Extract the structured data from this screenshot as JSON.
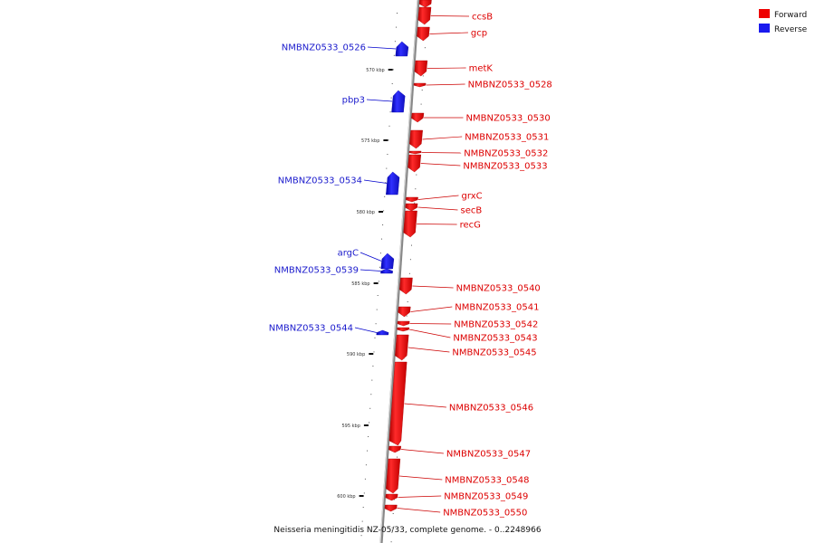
{
  "caption": "Neisseria meningitidis NZ-05/33, complete genome. - 0..2248966",
  "legend": [
    {
      "label": "Forward",
      "color": "#ee0000"
    },
    {
      "label": "Reverse",
      "color": "#1a1aee"
    }
  ],
  "colors": {
    "forward": "#ee0000",
    "reverse": "#1a1aee",
    "backbone": "#888888"
  },
  "ticks": [
    "570 kbp",
    "575 kbp",
    "580 kbp",
    "585 kbp",
    "590 kbp",
    "595 kbp",
    "600 kbp"
  ],
  "genes": {
    "forward": [
      "ccsB",
      "gcp",
      "metK",
      "NMBNZ0533_0528",
      "NMBNZ0533_0530",
      "NMBNZ0533_0531",
      "NMBNZ0533_0532",
      "NMBNZ0533_0533",
      "grxC",
      "secB",
      "recG",
      "NMBNZ0533_0540",
      "NMBNZ0533_0541",
      "NMBNZ0533_0542",
      "NMBNZ0533_0543",
      "NMBNZ0533_0545",
      "NMBNZ0533_0546",
      "NMBNZ0533_0547",
      "NMBNZ0533_0548",
      "NMBNZ0533_0549",
      "NMBNZ0533_0550"
    ],
    "reverse": [
      "NMBNZ0533_0526",
      "pbp3",
      "NMBNZ0533_0534",
      "argC",
      "NMBNZ0533_0539",
      "NMBNZ0533_0544"
    ]
  }
}
